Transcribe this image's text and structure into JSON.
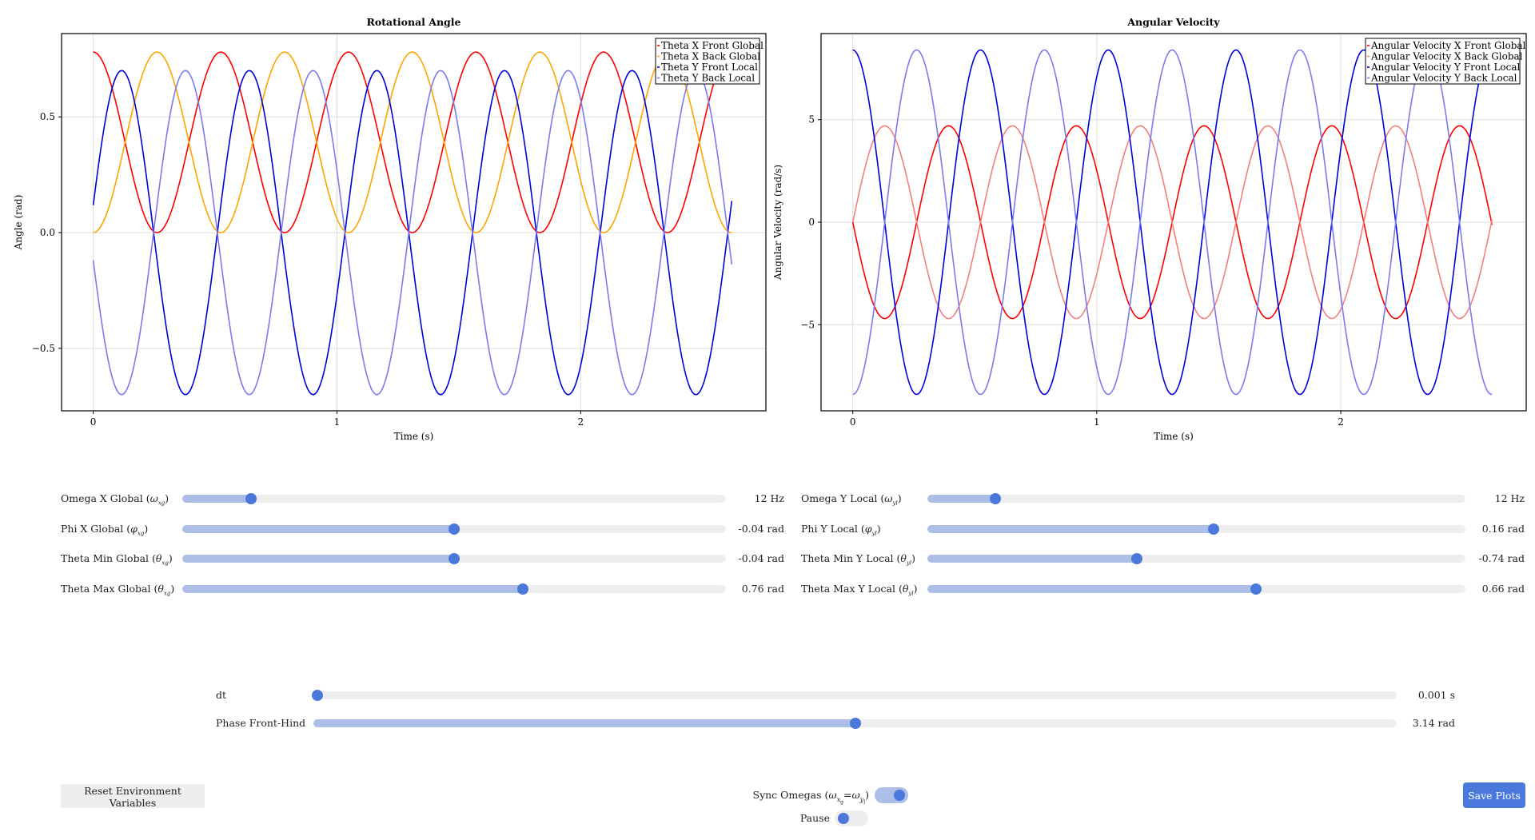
{
  "colors": {
    "red": "#ff0000",
    "orange": "#ffa500",
    "blue": "#0000dd",
    "light_blue": "#7b7bee",
    "light_red": "#f57e7e",
    "slider_fill": "#adbfe6",
    "knob": "#4a78db",
    "track": "#eeeeee"
  },
  "chart_data": [
    {
      "type": "line",
      "title": "Rotational Angle",
      "xlabel": "Time (s)",
      "ylabel": "Angle (rad)",
      "xlim": [
        -0.13,
        2.76
      ],
      "ylim": [
        -0.77,
        0.86
      ],
      "xticks": [
        0,
        1,
        2
      ],
      "xtick_labels": [
        "0",
        "1",
        "2"
      ],
      "yticks": [
        -0.5,
        0.0,
        0.5
      ],
      "ytick_labels": [
        "−0.5",
        "0.0",
        "0.5"
      ],
      "grid": true,
      "legend_position": "top-right",
      "x_range": [
        0,
        2.62
      ],
      "series": [
        {
          "name": "Theta X Front Global",
          "color": "#ff0000",
          "func": "sin",
          "offset": 0.39,
          "amp": 0.39,
          "freq": 1.91,
          "phase": 1.571
        },
        {
          "name": "Theta X Back Global",
          "color": "#ffa500",
          "func": "sin",
          "offset": 0.39,
          "amp": 0.39,
          "freq": 1.91,
          "phase": -1.571
        },
        {
          "name": "Theta Y Front Local",
          "color": "#0000dd",
          "func": "sin",
          "offset": 0.0,
          "amp": 0.7,
          "freq": 1.91,
          "phase": 0.17
        },
        {
          "name": "Theta Y Back Local",
          "color": "#7b7bee",
          "func": "sin",
          "offset": 0.0,
          "amp": 0.7,
          "freq": 1.91,
          "phase": -2.97
        }
      ]
    },
    {
      "type": "line",
      "title": "Angular Velocity",
      "xlabel": "Time (s)",
      "ylabel": "Angular Velocity (rad/s)",
      "xlim": [
        -0.13,
        2.76
      ],
      "ylim": [
        -9.2,
        9.2
      ],
      "xticks": [
        0,
        1,
        2
      ],
      "xtick_labels": [
        "0",
        "1",
        "2"
      ],
      "yticks": [
        -5,
        0,
        5
      ],
      "ytick_labels": [
        "−5",
        "0",
        "5"
      ],
      "grid": true,
      "legend_position": "top-right",
      "x_range": [
        0,
        2.62
      ],
      "series": [
        {
          "name": "Angular Velocity X Front Global",
          "color": "#ff0000",
          "func": "sin",
          "offset": 0,
          "amp": 4.7,
          "freq": 1.91,
          "phase": 3.1416
        },
        {
          "name": "Angular Velocity X Back Global",
          "color": "#f57e7e",
          "func": "sin",
          "offset": 0,
          "amp": 4.7,
          "freq": 1.91,
          "phase": 0
        },
        {
          "name": "Angular Velocity Y Front Local",
          "color": "#0000dd",
          "func": "sin",
          "offset": 0,
          "amp": 8.4,
          "freq": 1.91,
          "phase": 1.571
        },
        {
          "name": "Angular Velocity Y Back Local",
          "color": "#7b7bee",
          "func": "sin",
          "offset": 0,
          "amp": 8.4,
          "freq": 1.91,
          "phase": -1.571
        }
      ]
    }
  ],
  "sliders_left": [
    {
      "label": "Omega X Global",
      "symbol": "(ω",
      "sub": "xg",
      "value": "12 Hz",
      "fraction": 0.126
    },
    {
      "label": "Phi X Global",
      "symbol": "(φ",
      "sub": "xg",
      "value": "-0.04 rad",
      "fraction": 0.5
    },
    {
      "label": "Theta Min Global",
      "symbol": "(θ",
      "sub": "xg",
      "value": "-0.04 rad",
      "fraction": 0.5
    },
    {
      "label": "Theta Max Global",
      "symbol": "(θ",
      "sub": "xg",
      "value": "0.76 rad",
      "fraction": 0.627
    }
  ],
  "sliders_right": [
    {
      "label": "Omega Y Local",
      "symbol": "(ω",
      "sub": "yl",
      "value": "12 Hz",
      "fraction": 0.126
    },
    {
      "label": "Phi Y Local",
      "symbol": "(φ",
      "sub": "yl",
      "value": "0.16 rad",
      "fraction": 0.532
    },
    {
      "label": "Theta Min Y Local",
      "symbol": "(θ",
      "sub": "yl",
      "value": "-0.74 rad",
      "fraction": 0.389
    },
    {
      "label": "Theta Max Y Local",
      "symbol": "(θ",
      "sub": "yl",
      "value": "0.66 rad",
      "fraction": 0.611
    }
  ],
  "sliders_global": [
    {
      "label": "dt",
      "value": "0.001 s",
      "fraction": 0.004
    },
    {
      "label": "Phase Front-Hind",
      "value": "3.14 rad",
      "fraction": 0.5
    }
  ],
  "buttons": {
    "reset": "Reset Environment Variables",
    "save": "Save Plots"
  },
  "toggles": {
    "sync_label": "Sync Omegas",
    "sync_on": true,
    "pause_label": "Pause",
    "pause_on": false
  }
}
